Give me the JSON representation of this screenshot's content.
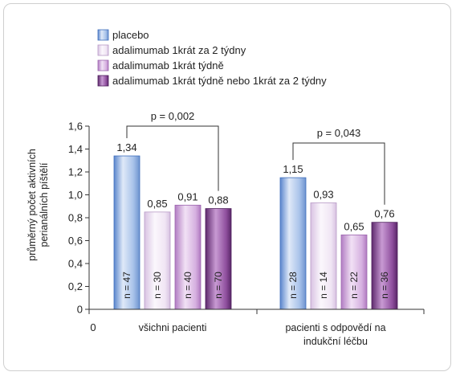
{
  "chart_data": {
    "type": "bar",
    "ylabel_lines": [
      "průměrný počet aktivních",
      "perianálních píštělí"
    ],
    "y_ticks": [
      "0",
      "0,2",
      "0,4",
      "0,6",
      "0,8",
      "1,0",
      "1,2",
      "1,4",
      "1,6"
    ],
    "ylim": [
      0,
      1.6
    ],
    "x_origin_label": "0",
    "categories": [
      {
        "lines": [
          "všichni pacienti"
        ]
      },
      {
        "lines": [
          "pacienti s odpovědí na",
          "indukční léčbu"
        ]
      }
    ],
    "series": [
      {
        "name": "placebo",
        "color": "#8fb2e3"
      },
      {
        "name": "adalimumab 1krát za 2 týdny",
        "color": "#efe1f3"
      },
      {
        "name": "adalimumab 1krát týdně",
        "color": "#d2a9dd"
      },
      {
        "name": "adalimumab 1krát týdně nebo 1krát za 2 týdny",
        "color": "#8d4f9b"
      }
    ],
    "groups": [
      {
        "values": [
          1.34,
          0.85,
          0.91,
          0.88
        ],
        "value_labels": [
          "1,34",
          "0,85",
          "0,91",
          "0,88"
        ],
        "n_labels": [
          "n = 47",
          "n = 30",
          "n = 40",
          "n = 70"
        ],
        "pvalue": "p = 0,002"
      },
      {
        "values": [
          1.15,
          0.93,
          0.65,
          0.76
        ],
        "value_labels": [
          "1,15",
          "0,93",
          "0,65",
          "0,76"
        ],
        "n_labels": [
          "n = 28",
          "n = 14",
          "n = 22",
          "n = 36"
        ],
        "pvalue": "p = 0,043"
      }
    ],
    "pvalue_brackets": [
      {
        "group": 0,
        "from_series": 0,
        "to_series": 3
      },
      {
        "group": 1,
        "from_series": 0,
        "to_series": 3
      }
    ],
    "legend_position": "top"
  }
}
